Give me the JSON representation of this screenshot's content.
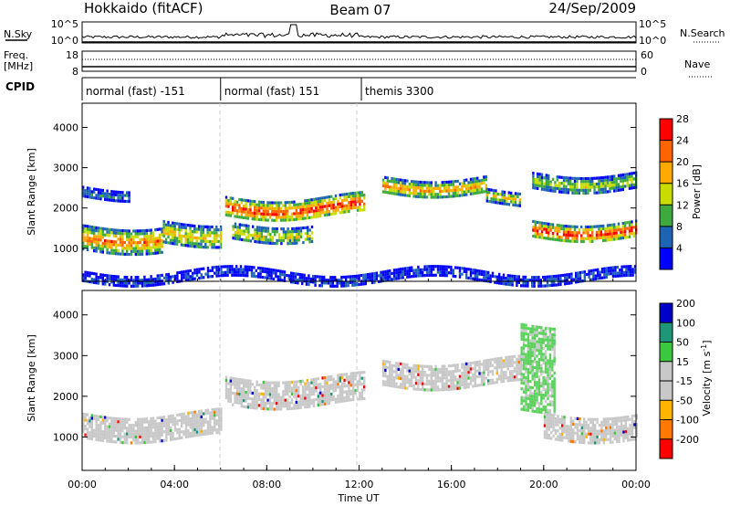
{
  "header": {
    "left_title": "Hokkaido (fitACF)",
    "center_title": "Beam 07",
    "right_title": "24/Sep/2009"
  },
  "panels": {
    "nsky": {
      "label": "N.Sky",
      "ticks": [
        "10^5",
        "10^0"
      ],
      "right_label": "N.Search",
      "right_ticks": [
        "10^5",
        "10^0"
      ]
    },
    "freq": {
      "label": "Freq.",
      "unit": "[MHz]",
      "ticks": [
        "18",
        "8"
      ],
      "right_label": "Nave",
      "right_ticks": [
        "60",
        "0"
      ]
    },
    "cpid": {
      "label": "CPID",
      "segments": [
        {
          "text": "normal (fast) -151",
          "start_h": 0,
          "end_h": 6
        },
        {
          "text": "normal (fast) 151",
          "start_h": 6,
          "end_h": 12.1
        },
        {
          "text": "themis 3300",
          "start_h": 12.1,
          "end_h": 24
        }
      ]
    }
  },
  "colors": {
    "power_scale": [
      "#0000ff",
      "#1e64b4",
      "#3caa3c",
      "#c8dc00",
      "#ffaa00",
      "#ff6400",
      "#ff0000"
    ],
    "velocity_scale": [
      "#ff0000",
      "#ff7800",
      "#ffb400",
      "#c8c8c8",
      "#c8c8c8",
      "#3cc83c",
      "#1e9678",
      "#0000c8"
    ],
    "gray_scatter": "#c0c0c0"
  },
  "chart_data": [
    {
      "type": "heatmap",
      "name": "power",
      "ylabel": "Slant Range [km]",
      "yticks": [
        "1000",
        "2000",
        "3000",
        "4000"
      ],
      "ylim": [
        180,
        4600
      ],
      "xlim": [
        0,
        24
      ],
      "colorbar": {
        "label": "Power [dB]",
        "ticks": [
          "4",
          "8",
          "12",
          "16",
          "20",
          "24",
          "28"
        ],
        "range": [
          0,
          32
        ]
      },
      "echo_bands": [
        {
          "t0": 0.0,
          "t1": 3.5,
          "r0": 1000,
          "r1": 1600,
          "level": 0.78
        },
        {
          "t0": 3.5,
          "t1": 6.0,
          "r0": 1150,
          "r1": 1700,
          "level": 0.62
        },
        {
          "t0": 0.0,
          "t1": 2.0,
          "r0": 2300,
          "r1": 2550,
          "level": 0.25
        },
        {
          "t0": 6.2,
          "t1": 12.2,
          "r0": 1800,
          "r1": 2300,
          "level": 0.92
        },
        {
          "t0": 6.5,
          "t1": 10.0,
          "r0": 1250,
          "r1": 1650,
          "level": 0.55
        },
        {
          "t0": 13.0,
          "t1": 17.5,
          "r0": 2400,
          "r1": 2800,
          "level": 0.72
        },
        {
          "t0": 17.5,
          "t1": 19.0,
          "r0": 2200,
          "r1": 2500,
          "level": 0.6
        },
        {
          "t0": 19.5,
          "t1": 24.0,
          "r0": 1300,
          "r1": 1700,
          "level": 0.95
        },
        {
          "t0": 19.5,
          "t1": 24.0,
          "r0": 2500,
          "r1": 2900,
          "level": 0.5
        },
        {
          "t0": 0.0,
          "t1": 24.0,
          "r0": 200,
          "r1": 450,
          "level": 0.15
        }
      ]
    },
    {
      "type": "heatmap",
      "name": "velocity",
      "ylabel": "Slant Range [km]",
      "yticks": [
        "1000",
        "2000",
        "3000",
        "4000"
      ],
      "ylim": [
        180,
        4600
      ],
      "xlim": [
        0,
        24
      ],
      "xticks": [
        "00:00",
        "04:00",
        "08:00",
        "12:00",
        "16:00",
        "20:00",
        "00:00"
      ],
      "xlabel": "Time UT",
      "colorbar": {
        "label": "Velocity [m s^-1]",
        "ticks": [
          "-200",
          "-100",
          "-50",
          "-15",
          "15",
          "50",
          "100",
          "200"
        ],
        "range": [
          -250,
          250
        ]
      },
      "echo_bands": [
        {
          "t0": 0.0,
          "t1": 6.0,
          "r0": 1000,
          "r1": 1600,
          "level": 0.45
        },
        {
          "t0": 6.2,
          "t1": 12.2,
          "r0": 1800,
          "r1": 2500,
          "level": 0.5
        },
        {
          "t0": 13.0,
          "t1": 19.0,
          "r0": 2300,
          "r1": 2900,
          "level": 0.5
        },
        {
          "t0": 19.0,
          "t1": 20.5,
          "r0": 1700,
          "r1": 3800,
          "level": 0.7
        },
        {
          "t0": 20.0,
          "t1": 24.0,
          "r0": 1000,
          "r1": 1600,
          "level": 0.48
        }
      ]
    }
  ]
}
